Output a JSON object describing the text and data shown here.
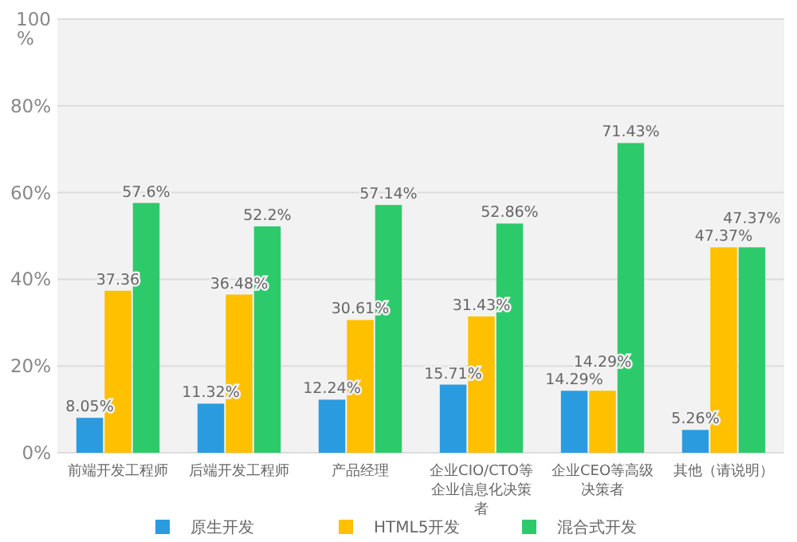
{
  "chart_data": {
    "type": "bar",
    "categories": [
      "前端开发工程师",
      "后端开发工程师",
      "产品经理",
      "企业CIO/CTO等企业信息化决策者",
      "企业CEO等高级决策者",
      "其他（请说明）"
    ],
    "series": [
      {
        "name": "原生开发",
        "color": "#2b9be0",
        "values": [
          8.05,
          11.32,
          12.24,
          15.71,
          14.29,
          5.26
        ],
        "value_labels": [
          "8.05%",
          "11.32%",
          "12.24%",
          "15.71%",
          "14.29%",
          "5.26%"
        ]
      },
      {
        "name": "HTML5开发",
        "color": "#ffc000",
        "values": [
          37.36,
          36.48,
          30.61,
          31.43,
          14.29,
          47.37
        ],
        "value_labels": [
          "37.36",
          "36.48%",
          "30.61%",
          "31.43%",
          "14.29%",
          "47.37%"
        ]
      },
      {
        "name": "混合式开发",
        "color": "#2dca6b",
        "values": [
          57.6,
          52.2,
          57.14,
          52.86,
          71.43,
          47.37
        ],
        "value_labels": [
          "57.6%",
          "52.2%",
          "57.14%",
          "52.86%",
          "71.43%",
          "47.37%"
        ]
      }
    ],
    "ylabel": "%",
    "ylim": [
      0,
      100
    ],
    "yticks": [
      {
        "value": 0,
        "label": "0%"
      },
      {
        "value": 20,
        "label": "20%"
      },
      {
        "value": 40,
        "label": "40%"
      },
      {
        "value": 60,
        "label": "60%"
      },
      {
        "value": 80,
        "label": "80%"
      },
      {
        "value": 100,
        "label": "100"
      }
    ],
    "grid": "y",
    "legend": "bottom"
  }
}
